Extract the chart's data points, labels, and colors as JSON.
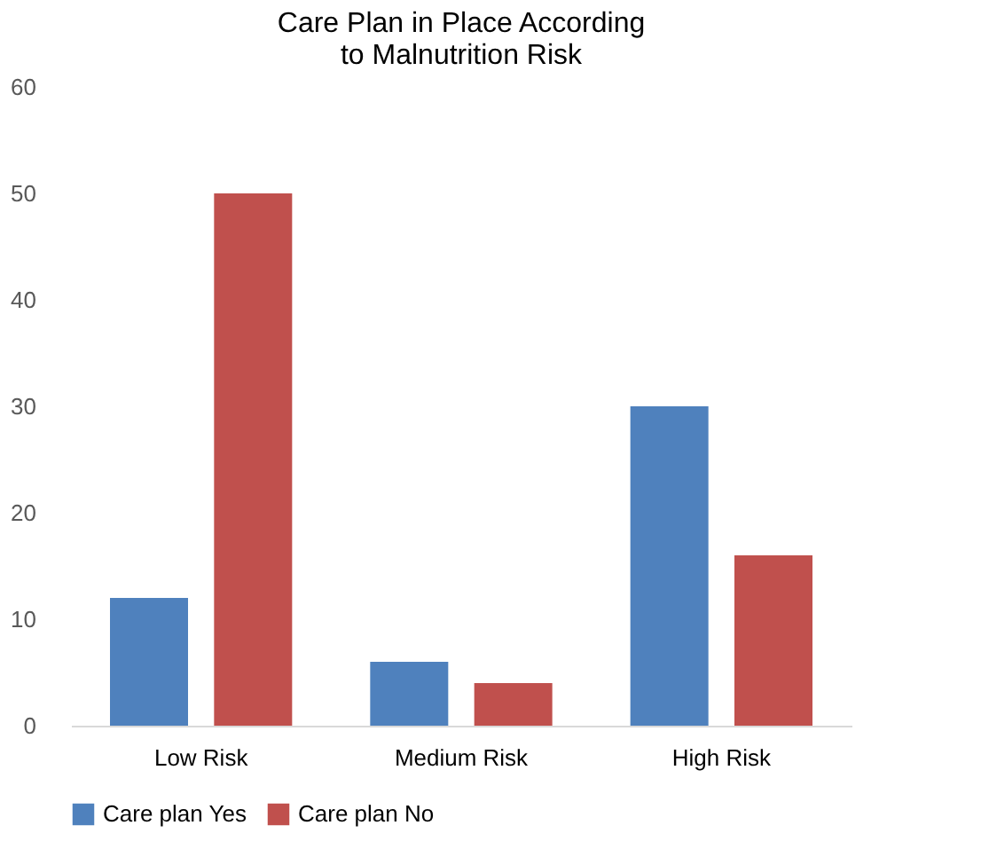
{
  "chart_data": {
    "type": "bar",
    "title": [
      "Care Plan in Place According",
      "to Malnutrition Risk"
    ],
    "categories": [
      "Low Risk",
      "Medium Risk",
      "High Risk"
    ],
    "series": [
      {
        "name": "Care plan Yes",
        "color": "#4f81bd",
        "values": [
          12,
          6,
          30
        ]
      },
      {
        "name": "Care plan No",
        "color": "#c0504d",
        "values": [
          50,
          4,
          16
        ]
      }
    ],
    "ylim": [
      0,
      60
    ],
    "yticks": [
      0,
      10,
      20,
      30,
      40,
      50,
      60
    ],
    "grid": false,
    "legend": "bottom"
  }
}
